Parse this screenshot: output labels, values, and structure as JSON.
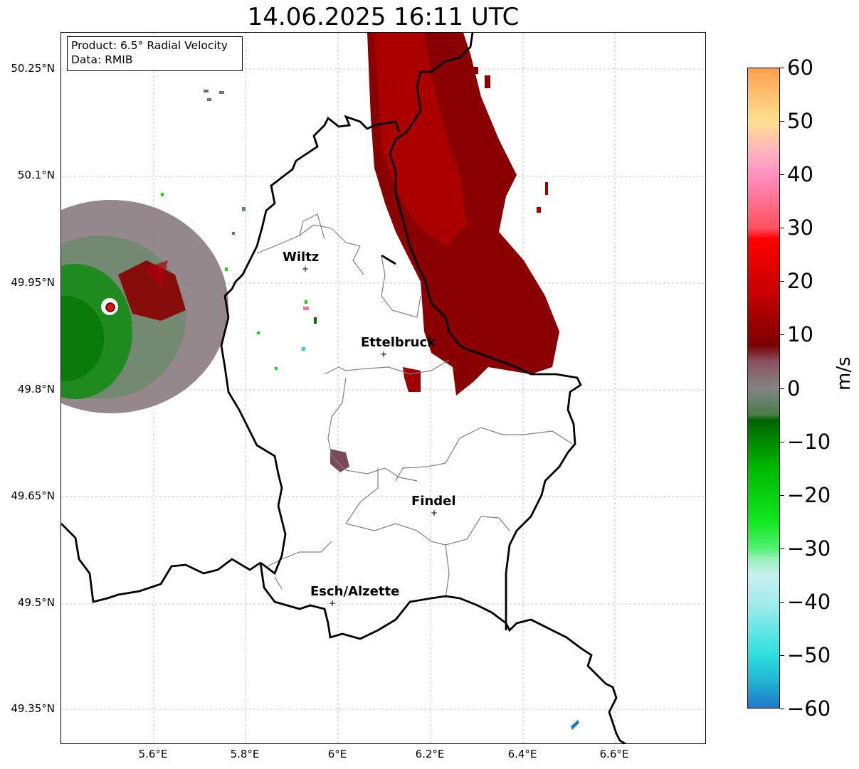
{
  "title": "14.06.2025 16:11 UTC",
  "info": {
    "product": "Product: 6.5° Radial Velocity",
    "data_source": "Data: RMIB"
  },
  "axes": {
    "lat_ticks": [
      "50.25°N",
      "50.1°N",
      "49.95°N",
      "49.8°N",
      "49.65°N",
      "49.5°N",
      "49.35°N"
    ],
    "lon_ticks": [
      "5.6°E",
      "5.8°E",
      "6°E",
      "6.2°E",
      "6.4°E",
      "6.6°E"
    ]
  },
  "cities": [
    {
      "name": "Wiltz",
      "lon": 5.93,
      "lat": 49.97
    },
    {
      "name": "Ettelbruck",
      "lon": 6.1,
      "lat": 49.85
    },
    {
      "name": "Findel",
      "lon": 6.21,
      "lat": 49.625
    },
    {
      "name": "Esch/Alzette",
      "lon": 5.99,
      "lat": 49.5
    }
  ],
  "radar_site": {
    "lon": 5.505,
    "lat": 49.915,
    "color": "#ff0000"
  },
  "colorbar": {
    "unit": "m/s",
    "min": -60,
    "max": 60,
    "tick_labels": [
      "60",
      "50",
      "40",
      "30",
      "20",
      "10",
      "0",
      "−10",
      "−20",
      "−30",
      "−40",
      "−50",
      "−60"
    ],
    "stops": [
      {
        "v": -60,
        "c": "#1f78c8"
      },
      {
        "v": -55,
        "c": "#22b4d4"
      },
      {
        "v": -50,
        "c": "#2de0e0"
      },
      {
        "v": -40,
        "c": "#a8ecec"
      },
      {
        "v": -35,
        "c": "#c8f0f0"
      },
      {
        "v": -32,
        "c": "#98f0b8"
      },
      {
        "v": -30,
        "c": "#50f070"
      },
      {
        "v": -25,
        "c": "#10e820"
      },
      {
        "v": -15,
        "c": "#00b800"
      },
      {
        "v": -6,
        "c": "#006400"
      },
      {
        "v": -5,
        "c": "#4a7d4a"
      },
      {
        "v": 0,
        "c": "#848484"
      },
      {
        "v": 5,
        "c": "#8a5060"
      },
      {
        "v": 8,
        "c": "#7a0000"
      },
      {
        "v": 18,
        "c": "#c80000"
      },
      {
        "v": 28,
        "c": "#ff0000"
      },
      {
        "v": 30,
        "c": "#ff5060"
      },
      {
        "v": 40,
        "c": "#ff90c0"
      },
      {
        "v": 44,
        "c": "#ffb0c0"
      },
      {
        "v": 50,
        "c": "#ffe090"
      },
      {
        "v": 60,
        "c": "#ffa050"
      }
    ]
  },
  "colors": {
    "border": "#000000",
    "cantons": "#808080",
    "grid": "#b0b0b0",
    "inbound_green": "#008000",
    "outbound_red": "#a00000"
  }
}
